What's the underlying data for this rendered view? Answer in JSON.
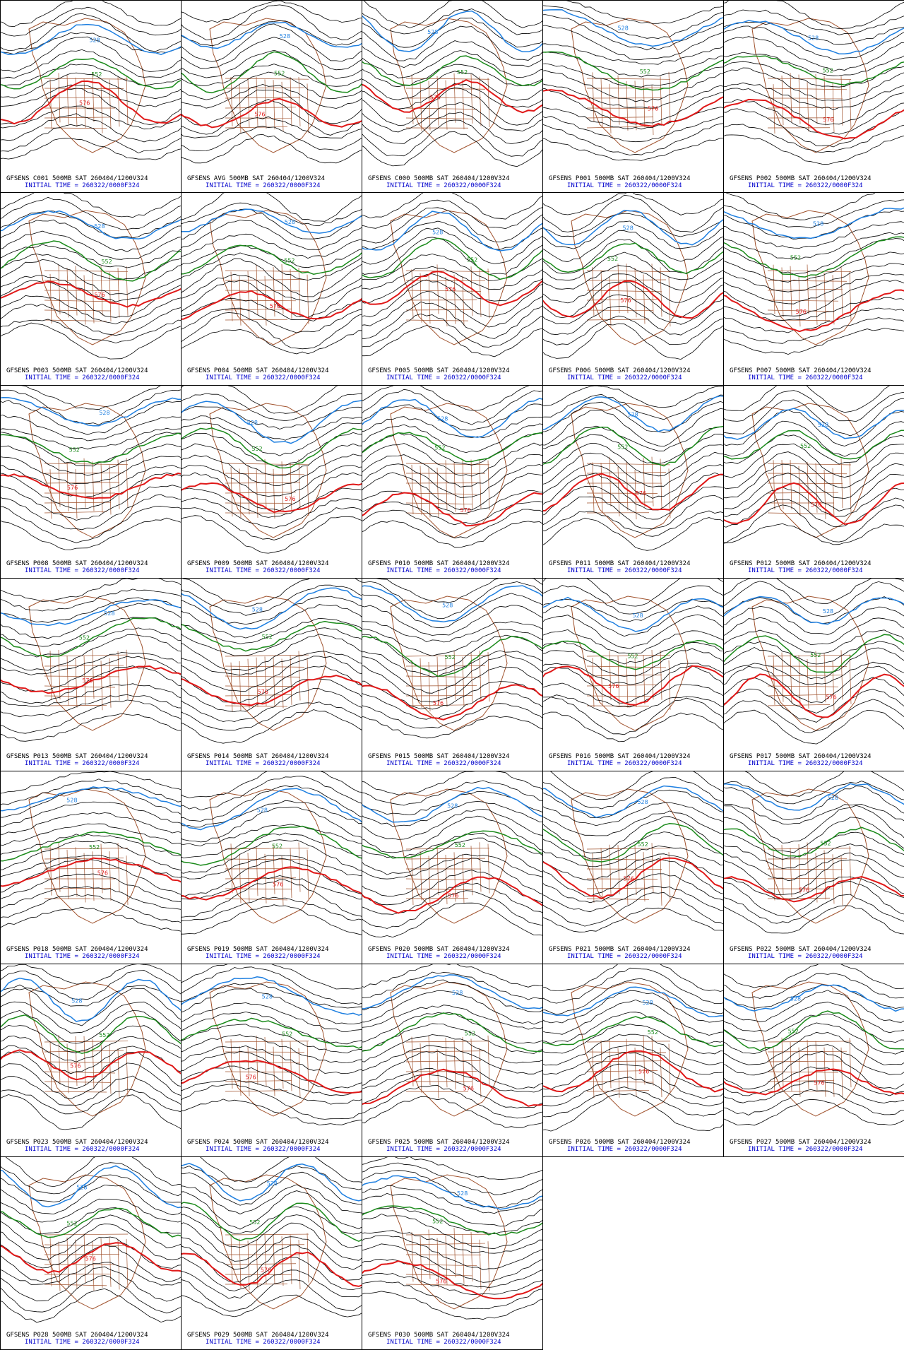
{
  "title_template": "500MB SAT 260404/1200V324",
  "initial_time_label": "INITIAL TIME = 260322/0000F324",
  "contour_labels": {
    "blue": "528",
    "green": "552",
    "red": "576"
  },
  "colors": {
    "blue": "#1e7fe0",
    "green": "#1a8a1a",
    "red": "#e01818",
    "black": "#000000",
    "coast": "#a0522d",
    "caption_blue": "#0000cc"
  },
  "panels": [
    {
      "id": "GFSENS C001"
    },
    {
      "id": "GFSENS AVG"
    },
    {
      "id": "GFSENS C000"
    },
    {
      "id": "GFSENS P001"
    },
    {
      "id": "GFSENS P002"
    },
    {
      "id": "GFSENS P003"
    },
    {
      "id": "GFSENS P004"
    },
    {
      "id": "GFSENS P005"
    },
    {
      "id": "GFSENS P006"
    },
    {
      "id": "GFSENS P007"
    },
    {
      "id": "GFSENS P008"
    },
    {
      "id": "GFSENS P009"
    },
    {
      "id": "GFSENS P010"
    },
    {
      "id": "GFSENS P011"
    },
    {
      "id": "GFSENS P012"
    },
    {
      "id": "GFSENS P013"
    },
    {
      "id": "GFSENS P014"
    },
    {
      "id": "GFSENS P015"
    },
    {
      "id": "GFSENS P016"
    },
    {
      "id": "GFSENS P017"
    },
    {
      "id": "GFSENS P018"
    },
    {
      "id": "GFSENS P019"
    },
    {
      "id": "GFSENS P020"
    },
    {
      "id": "GFSENS P021"
    },
    {
      "id": "GFSENS P022"
    },
    {
      "id": "GFSENS P023"
    },
    {
      "id": "GFSENS P024"
    },
    {
      "id": "GFSENS P025"
    },
    {
      "id": "GFSENS P026"
    },
    {
      "id": "GFSENS P027"
    },
    {
      "id": "GFSENS P028"
    },
    {
      "id": "GFSENS P029"
    },
    {
      "id": "GFSENS P030"
    }
  ]
}
